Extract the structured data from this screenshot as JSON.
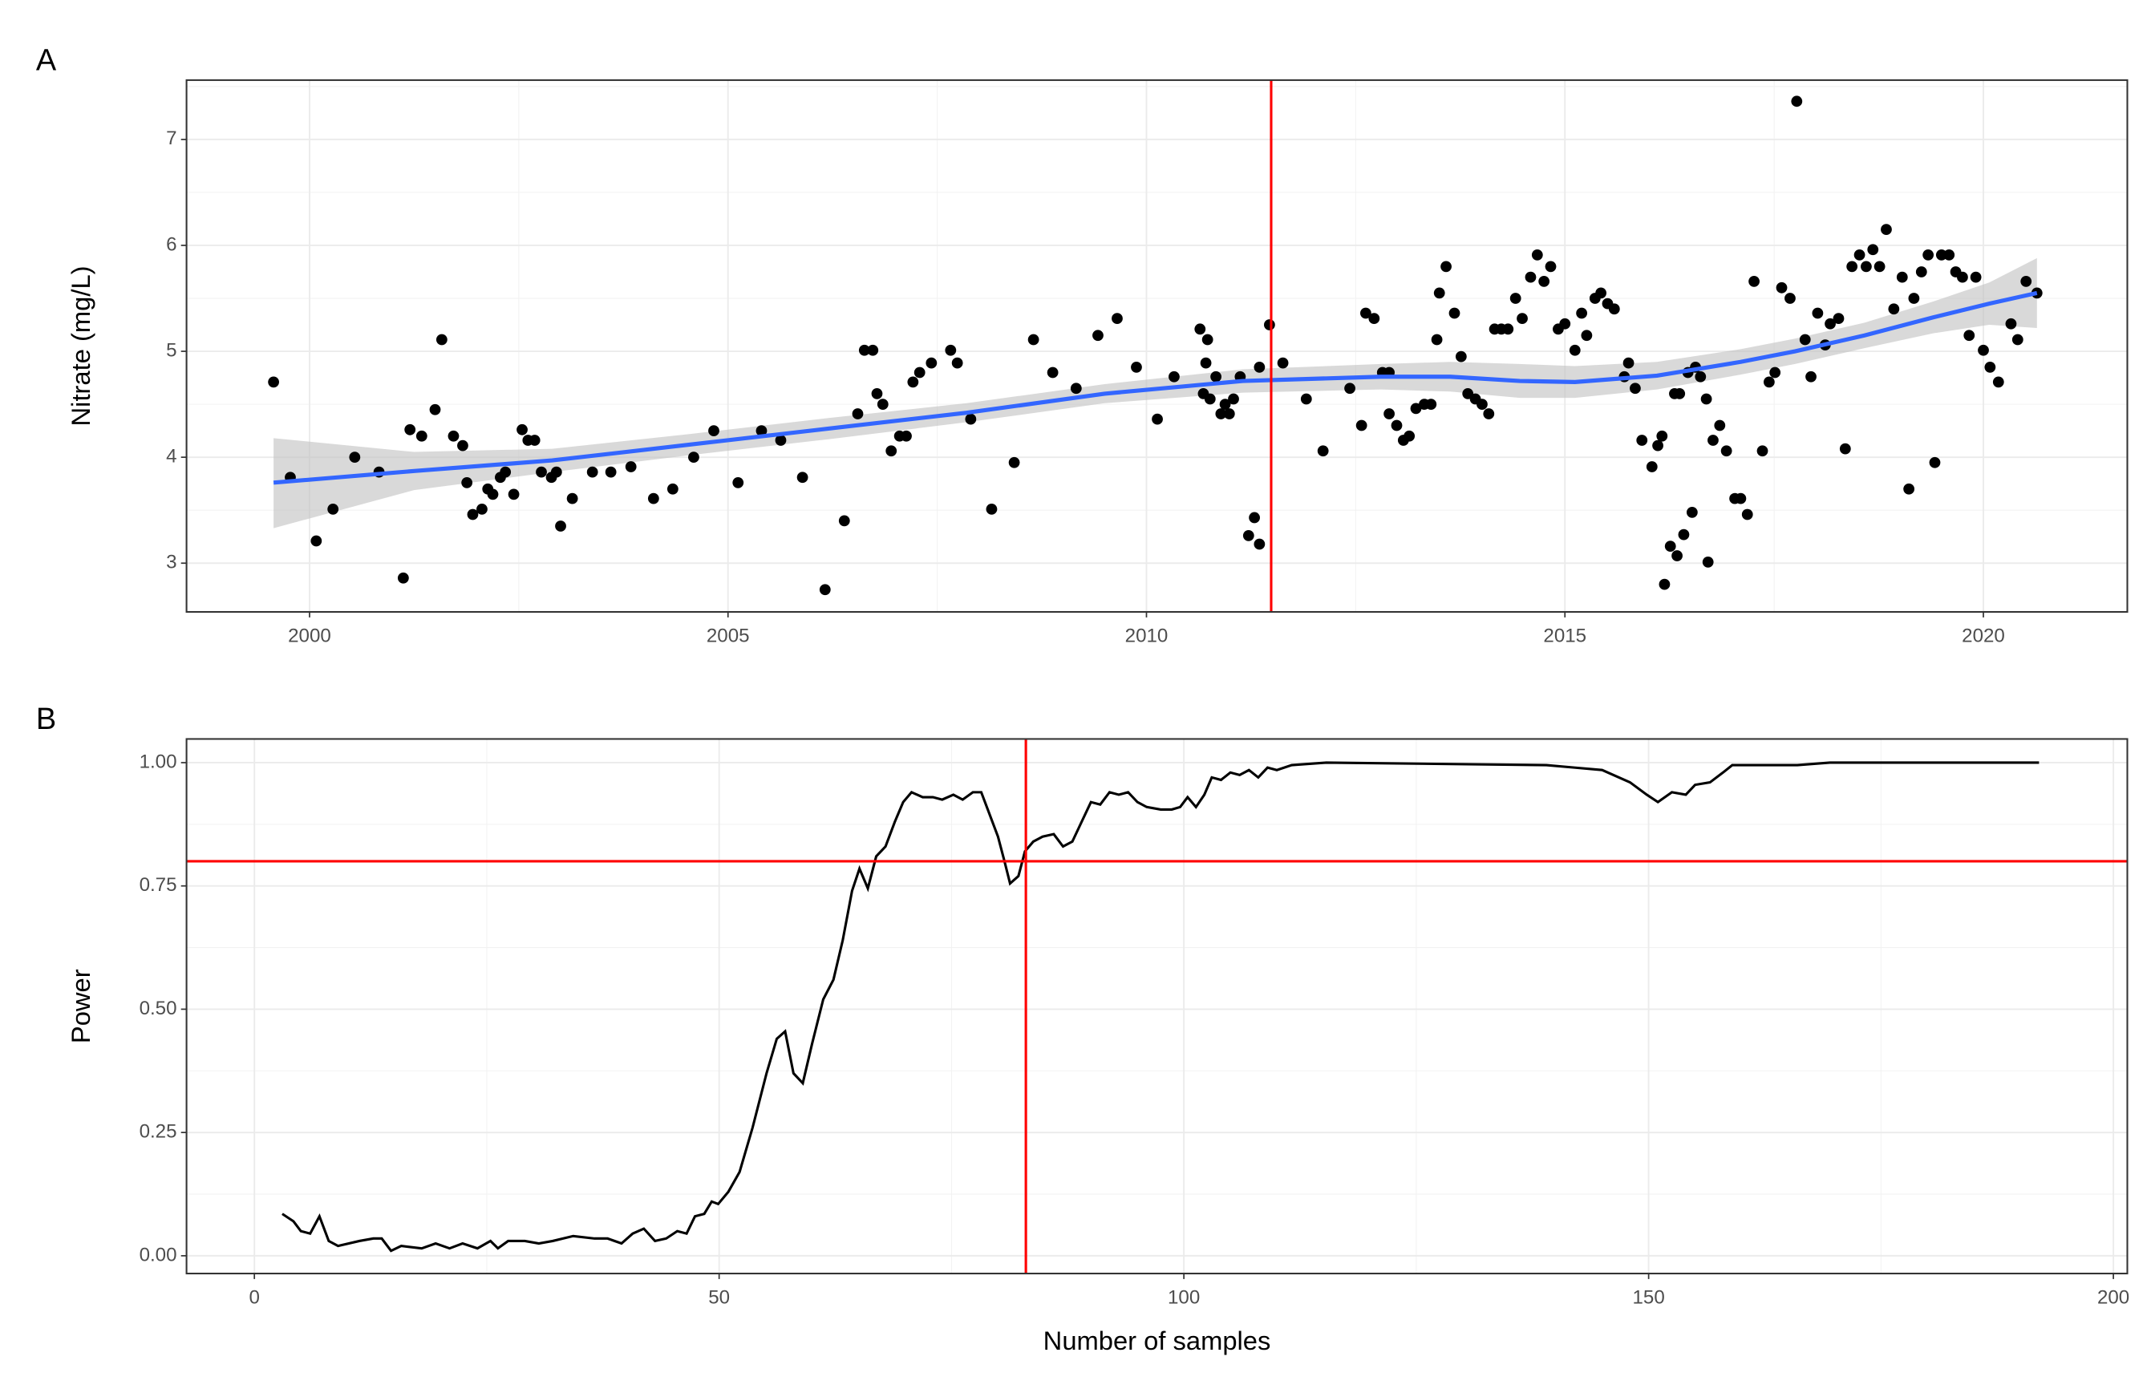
{
  "chart_data": [
    {
      "type": "scatter",
      "label": "A",
      "ylabel": "Nitrate (mg/L)",
      "color": "#000000",
      "grid": true,
      "minor_grid": true,
      "xlim": [
        1998.53,
        2021.72
      ],
      "ylim": [
        2.54,
        7.56
      ],
      "xticks": [
        2000,
        2005,
        2010,
        2015,
        2020
      ],
      "yticks": [
        3,
        4,
        5,
        6,
        7
      ],
      "x": [
        1999.57,
        1999.77,
        2000.08,
        2000.28,
        2000.54,
        2000.83,
        2001.12,
        2001.2,
        2001.34,
        2001.5,
        2001.58,
        2001.72,
        2001.83,
        2001.88,
        2001.95,
        2002.06,
        2002.13,
        2002.19,
        2002.28,
        2002.34,
        2002.44,
        2002.54,
        2002.61,
        2002.69,
        2002.77,
        2002.89,
        2002.95,
        2003.0,
        2003.14,
        2003.38,
        2003.6,
        2003.84,
        2004.11,
        2004.34,
        2004.59,
        2004.83,
        2005.12,
        2005.4,
        2005.63,
        2005.89,
        2006.16,
        2006.39,
        2006.55,
        2006.63,
        2006.73,
        2006.78,
        2006.85,
        2006.95,
        2007.05,
        2007.13,
        2007.21,
        2007.29,
        2007.43,
        2007.66,
        2007.74,
        2007.9,
        2008.15,
        2008.42,
        2008.65,
        2008.88,
        2009.16,
        2009.42,
        2009.65,
        2009.88,
        2010.13,
        2010.33,
        2010.64,
        2010.71,
        2010.73,
        2010.68,
        2010.76,
        2010.83,
        2010.89,
        2010.94,
        2010.99,
        2011.04,
        2011.12,
        2011.22,
        2011.29,
        2011.35,
        2011.35,
        2011.47,
        2011.63,
        2011.91,
        2012.11,
        2012.43,
        2012.57,
        2012.62,
        2012.72,
        2012.82,
        2012.9,
        2012.9,
        2012.99,
        2013.07,
        2013.14,
        2013.22,
        2013.32,
        2013.4,
        2013.47,
        2013.5,
        2013.58,
        2013.68,
        2013.76,
        2013.84,
        2013.93,
        2014.01,
        2014.09,
        2014.16,
        2014.24,
        2014.32,
        2014.41,
        2014.49,
        2014.59,
        2014.67,
        2014.75,
        2014.83,
        2014.92,
        2015.0,
        2015.12,
        2015.2,
        2015.26,
        2015.36,
        2015.43,
        2015.51,
        2015.59,
        2015.71,
        2015.76,
        2015.84,
        2015.92,
        2016.04,
        2016.11,
        2016.16,
        2016.19,
        2016.26,
        2016.31,
        2016.34,
        2016.37,
        2016.42,
        2016.47,
        2016.52,
        2016.56,
        2016.62,
        2016.69,
        2016.71,
        2016.77,
        2016.85,
        2016.93,
        2017.03,
        2017.1,
        2017.18,
        2017.26,
        2017.36,
        2017.44,
        2017.51,
        2017.59,
        2017.69,
        2017.77,
        2017.87,
        2017.94,
        2018.02,
        2018.11,
        2018.17,
        2018.27,
        2018.35,
        2018.43,
        2018.52,
        2018.6,
        2018.68,
        2018.76,
        2018.84,
        2018.93,
        2019.03,
        2019.11,
        2019.17,
        2019.26,
        2019.34,
        2019.42,
        2019.5,
        2019.59,
        2019.67,
        2019.75,
        2019.83,
        2019.91,
        2020.0,
        2020.08,
        2020.18,
        2020.33,
        2020.41,
        2020.51,
        2020.64
      ],
      "values": [
        4.71,
        3.81,
        3.21,
        3.51,
        4.0,
        3.86,
        2.86,
        4.26,
        4.2,
        4.45,
        5.11,
        4.2,
        4.11,
        3.76,
        3.46,
        3.51,
        3.7,
        3.65,
        3.81,
        3.86,
        3.65,
        4.26,
        4.16,
        4.16,
        3.86,
        3.81,
        3.86,
        3.35,
        3.61,
        3.86,
        3.86,
        3.91,
        3.61,
        3.7,
        4.0,
        4.25,
        3.76,
        4.25,
        4.16,
        3.81,
        2.75,
        3.4,
        4.41,
        5.01,
        5.01,
        4.6,
        4.5,
        4.06,
        4.2,
        4.2,
        4.71,
        4.8,
        4.89,
        5.01,
        4.89,
        4.36,
        3.51,
        3.95,
        5.11,
        4.8,
        4.65,
        5.15,
        5.31,
        4.85,
        4.36,
        4.76,
        5.21,
        4.89,
        5.11,
        4.6,
        4.55,
        4.76,
        4.41,
        4.5,
        4.41,
        4.55,
        4.76,
        3.26,
        3.43,
        3.18,
        4.85,
        5.25,
        4.89,
        4.55,
        4.06,
        4.65,
        4.3,
        5.36,
        5.31,
        4.8,
        4.8,
        4.41,
        4.3,
        4.16,
        4.2,
        4.46,
        4.5,
        4.5,
        5.11,
        5.55,
        5.8,
        5.36,
        4.95,
        4.6,
        4.55,
        4.5,
        4.41,
        5.21,
        5.21,
        5.21,
        5.5,
        5.31,
        5.7,
        5.91,
        5.66,
        5.8,
        5.21,
        5.26,
        5.01,
        5.36,
        5.15,
        5.5,
        5.55,
        5.45,
        5.4,
        4.76,
        4.89,
        4.65,
        4.16,
        3.91,
        4.11,
        4.2,
        2.8,
        3.16,
        4.6,
        3.07,
        4.6,
        3.27,
        4.8,
        3.48,
        4.85,
        4.76,
        4.55,
        3.01,
        4.16,
        4.3,
        4.06,
        3.61,
        3.61,
        3.46,
        5.66,
        4.06,
        4.71,
        4.8,
        5.6,
        5.5,
        7.36,
        5.11,
        4.76,
        5.36,
        5.06,
        5.26,
        5.31,
        4.08,
        5.8,
        5.91,
        5.8,
        5.96,
        5.8,
        6.15,
        5.4,
        5.7,
        3.7,
        5.5,
        5.75,
        5.91,
        3.95,
        5.91,
        5.91,
        5.75,
        5.7,
        5.15,
        5.7,
        5.01,
        4.85,
        4.71,
        5.26,
        5.11,
        5.66,
        5.55
      ],
      "smooth": {
        "color": "#3366ff",
        "ribbon_color": "#bfbfbf",
        "x": [
          1999.57,
          2001.25,
          2002.9,
          2004.55,
          2006.2,
          2007.85,
          2009.5,
          2011.15,
          2012.8,
          2013.63,
          2014.46,
          2015.12,
          2016.1,
          2017.1,
          2017.75,
          2018.58,
          2019.4,
          2020.07,
          2020.64
        ],
        "values": [
          3.76,
          3.87,
          3.97,
          4.12,
          4.27,
          4.42,
          4.6,
          4.72,
          4.76,
          4.76,
          4.72,
          4.71,
          4.77,
          4.9,
          5.0,
          5.15,
          5.32,
          5.45,
          5.55
        ],
        "upper": [
          4.18,
          4.05,
          4.08,
          4.22,
          4.37,
          4.51,
          4.69,
          4.83,
          4.88,
          4.9,
          4.88,
          4.86,
          4.9,
          5.02,
          5.12,
          5.27,
          5.47,
          5.65,
          5.88
        ],
        "lower": [
          3.33,
          3.69,
          3.86,
          4.02,
          4.17,
          4.33,
          4.51,
          4.61,
          4.64,
          4.62,
          4.56,
          4.56,
          4.64,
          4.78,
          4.88,
          5.03,
          5.17,
          5.25,
          5.22
        ]
      },
      "vline": 2011.49,
      "ref_color": "#ff0000"
    },
    {
      "type": "line",
      "label": "B",
      "xlabel": "Number of samples",
      "ylabel": "Power",
      "grid": true,
      "minor_grid": true,
      "xlim": [
        -7.3,
        201.5
      ],
      "ylim": [
        -0.036,
        1.048
      ],
      "xticks": [
        0,
        50,
        100,
        150,
        200
      ],
      "yticks": [
        {
          "value": 0,
          "label": "0.00"
        },
        0.25,
        {
          "value": 0.5,
          "label": "0.50"
        },
        0.75,
        {
          "value": 1,
          "label": "1.00"
        }
      ],
      "x": [
        3,
        4.2,
        5,
        6,
        7,
        8,
        9,
        11.3,
        12.8,
        13.7,
        14.7,
        15.8,
        18,
        19.5,
        21,
        22.4,
        24,
        25.4,
        26.2,
        27.3,
        29.1,
        30.6,
        32.1,
        34.3,
        36.6,
        38,
        39.5,
        40.7,
        41.9,
        43.1,
        44.3,
        45.5,
        46.5,
        47.4,
        48.4,
        49.2,
        49.9,
        51,
        52.2,
        53.6,
        55.1,
        56.2,
        57.1,
        58,
        59,
        60,
        61.2,
        62.3,
        63.3,
        64.3,
        65.1,
        66,
        66.9,
        67.9,
        68.9,
        69.8,
        70.7,
        71.9,
        73,
        74,
        75.2,
        76.2,
        77.3,
        78.2,
        79,
        80,
        80.7,
        81.3,
        82.2,
        82.9,
        83.8,
        84.8,
        86,
        87,
        88,
        89,
        90,
        91,
        92,
        93,
        94,
        95,
        96,
        97.5,
        98.7,
        99.6,
        100.4,
        101.3,
        102.2,
        103,
        104,
        105,
        106,
        107,
        108,
        109,
        110,
        111.6,
        115.3,
        139,
        142,
        145,
        148,
        149.8,
        151,
        152.5,
        154,
        155,
        156.6,
        158,
        159,
        166,
        169.5,
        192
      ],
      "series": [
        {
          "color": "#000000",
          "values": [
            0.085,
            0.07,
            0.05,
            0.045,
            0.08,
            0.03,
            0.02,
            0.03,
            0.035,
            0.035,
            0.01,
            0.02,
            0.015,
            0.025,
            0.015,
            0.025,
            0.015,
            0.03,
            0.015,
            0.03,
            0.03,
            0.025,
            0.03,
            0.04,
            0.035,
            0.035,
            0.025,
            0.045,
            0.055,
            0.03,
            0.035,
            0.05,
            0.045,
            0.08,
            0.085,
            0.11,
            0.105,
            0.13,
            0.17,
            0.26,
            0.37,
            0.44,
            0.455,
            0.37,
            0.35,
            0.43,
            0.52,
            0.56,
            0.64,
            0.74,
            0.785,
            0.745,
            0.81,
            0.83,
            0.88,
            0.92,
            0.94,
            0.93,
            0.93,
            0.925,
            0.935,
            0.925,
            0.94,
            0.94,
            0.9,
            0.85,
            0.8,
            0.755,
            0.77,
            0.82,
            0.84,
            0.85,
            0.855,
            0.83,
            0.84,
            0.88,
            0.92,
            0.915,
            0.94,
            0.935,
            0.94,
            0.92,
            0.91,
            0.905,
            0.905,
            0.91,
            0.93,
            0.91,
            0.935,
            0.97,
            0.965,
            0.98,
            0.975,
            0.985,
            0.97,
            0.99,
            0.985,
            0.995,
            1.0,
            0.995,
            0.99,
            0.985,
            0.96,
            0.935,
            0.92,
            0.94,
            0.935,
            0.955,
            0.96,
            0.98,
            0.995,
            0.995,
            1.0,
            1.0
          ]
        }
      ],
      "vline": 83,
      "hline": 0.8,
      "ref_color": "#ff0000"
    }
  ]
}
